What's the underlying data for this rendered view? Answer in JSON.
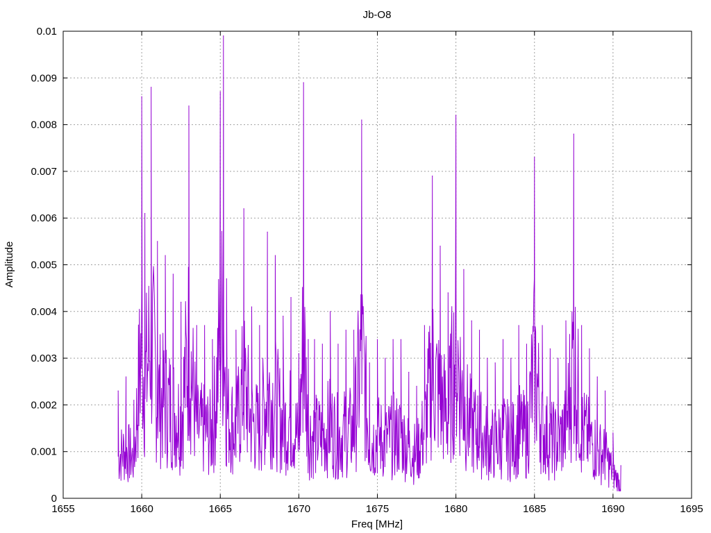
{
  "chart_data": {
    "type": "line",
    "title": "Jb-O8",
    "xlabel": "Freq [MHz]",
    "ylabel": "Amplitude",
    "xlim": [
      1655,
      1695
    ],
    "ylim": [
      0,
      0.01
    ],
    "x_ticks": [
      "1655",
      "1660",
      "1665",
      "1670",
      "1675",
      "1680",
      "1685",
      "1690",
      "1695"
    ],
    "y_ticks": [
      "0",
      "0.001",
      "0.002",
      "0.003",
      "0.004",
      "0.005",
      "0.006",
      "0.007",
      "0.008",
      "0.009",
      "0.01"
    ],
    "grid": true,
    "line_color": "#9400d3",
    "series": [
      {
        "x": [
          1658.5,
          1659,
          1659.5,
          1660,
          1660.2,
          1660.6,
          1661,
          1661.5,
          1662,
          1662.5,
          1663,
          1663.5,
          1664,
          1664.5,
          1665,
          1665.2,
          1665.4,
          1666,
          1666.5,
          1667,
          1667.5,
          1668,
          1668.5,
          1669,
          1669.5,
          1670,
          1670.3,
          1670.6,
          1671,
          1671.5,
          1672,
          1672.5,
          1673,
          1673.5,
          1674,
          1674.5,
          1675,
          1675.5,
          1676,
          1676.5,
          1677,
          1677.5,
          1678,
          1678.5,
          1679,
          1679.5,
          1680,
          1680.5,
          1681,
          1681.5,
          1682,
          1682.5,
          1683,
          1683.5,
          1684,
          1684.5,
          1685,
          1685.5,
          1686,
          1686.5,
          1687,
          1687.5,
          1688,
          1688.5,
          1689,
          1689.5,
          1690,
          1690.5
        ],
        "y": [
          0.0023,
          0.0026,
          0.0021,
          0.0086,
          0.0061,
          0.0088,
          0.0055,
          0.0052,
          0.0048,
          0.0042,
          0.0084,
          0.0037,
          0.0037,
          0.0034,
          0.0087,
          0.0099,
          0.0047,
          0.0036,
          0.0062,
          0.0041,
          0.0037,
          0.0057,
          0.0052,
          0.0039,
          0.0043,
          0.0031,
          0.0089,
          0.0034,
          0.0034,
          0.0033,
          0.004,
          0.0033,
          0.0036,
          0.0036,
          0.0081,
          0.0029,
          0.0034,
          0.003,
          0.0034,
          0.0034,
          0.0027,
          0.0024,
          0.0037,
          0.0069,
          0.0054,
          0.0044,
          0.0082,
          0.0049,
          0.0038,
          0.0036,
          0.003,
          0.0029,
          0.0034,
          0.003,
          0.0037,
          0.0033,
          0.0073,
          0.0037,
          0.0032,
          0.003,
          0.0038,
          0.0078,
          0.0037,
          0.0032,
          0.0026,
          0.0023,
          0.0014,
          0.0007
        ]
      }
    ]
  }
}
